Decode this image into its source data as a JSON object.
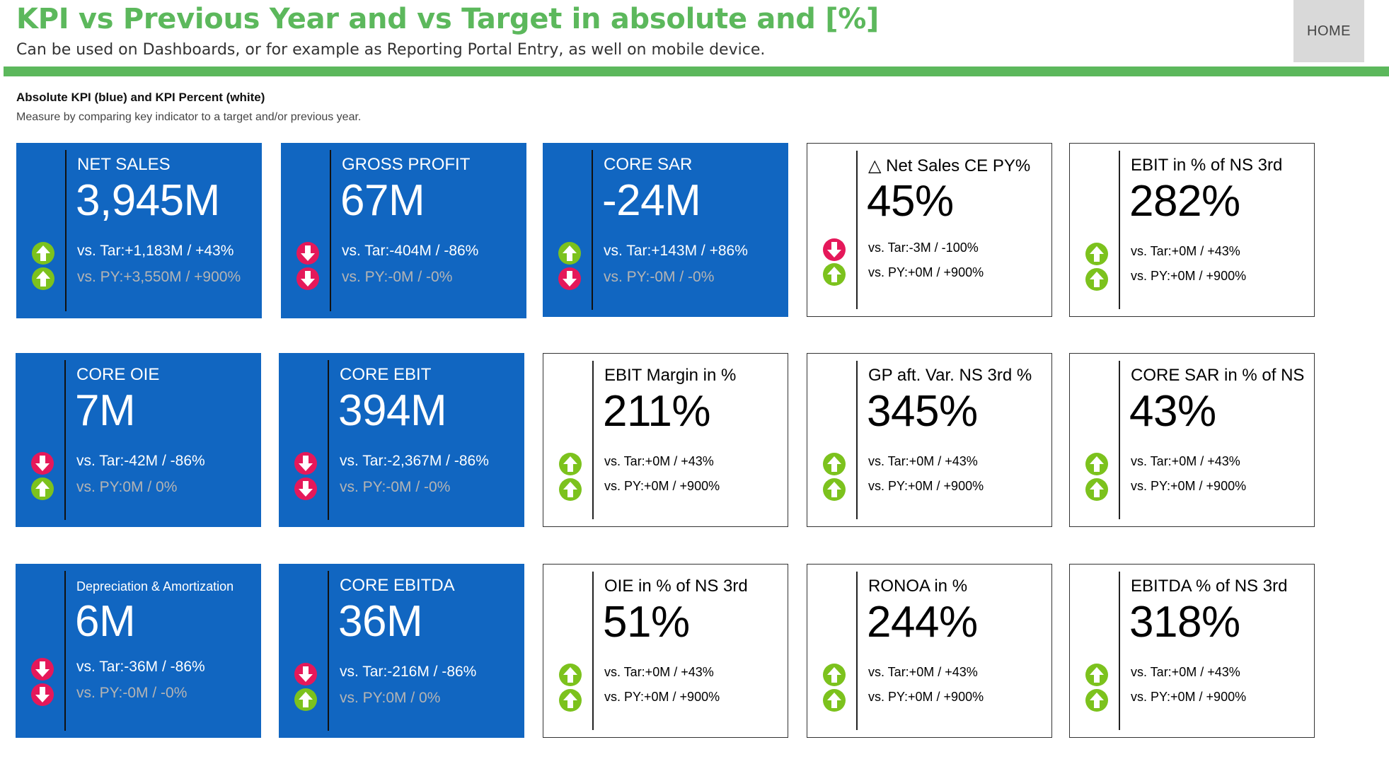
{
  "header": {
    "title": "KPI vs Previous Year and vs Target in absolute and [%]",
    "subtitle": "Can be used on Dashboards, or for example as Reporting Portal Entry, as well on mobile device.",
    "home_label": "HOME"
  },
  "section": {
    "heading": "Absolute KPI (blue) and KPI Percent (white)",
    "description": "Measure by comparing key indicator to a target and/or previous year."
  },
  "colors": {
    "accent_green": "#5cb85c",
    "tile_blue": "#1166c1",
    "arrow_up": "#7cc21d",
    "arrow_down": "#e5185a"
  },
  "tiles": [
    {
      "name": "NET SALES",
      "value": "3,945M",
      "vs_target": "vs. Tar:+1,183M / +43%",
      "vs_py": "vs. PY:+3,550M / +900%",
      "target_icon": "arrow-up-icon",
      "py_icon": "arrow-up-icon"
    },
    {
      "name": "GROSS PROFIT",
      "value": "67M",
      "vs_target": "vs. Tar:-404M / -86%",
      "vs_py": "vs. PY:-0M / -0%",
      "target_icon": "arrow-down-icon",
      "py_icon": "arrow-down-icon"
    },
    {
      "name": "CORE SAR",
      "value": "-24M",
      "vs_target": "vs. Tar:+143M / +86%",
      "vs_py": "vs. PY:-0M / -0%",
      "target_icon": "arrow-up-icon",
      "py_icon": "arrow-down-icon"
    },
    {
      "name": "△ Net Sales CE PY%",
      "value": "45%",
      "vs_target": "vs. Tar:-3M / -100%",
      "vs_py": "vs. PY:+0M / +900%",
      "target_icon": "arrow-down-icon",
      "py_icon": "arrow-up-icon"
    },
    {
      "name": "EBIT in % of NS 3rd",
      "value": "282%",
      "vs_target": "vs. Tar:+0M / +43%",
      "vs_py": "vs. PY:+0M / +900%",
      "target_icon": "arrow-up-icon",
      "py_icon": "arrow-up-icon"
    },
    {
      "name": "CORE OIE",
      "value": "7M",
      "vs_target": "vs. Tar:-42M / -86%",
      "vs_py": "vs. PY:0M / 0%",
      "target_icon": "arrow-down-icon",
      "py_icon": "arrow-up-icon"
    },
    {
      "name": "CORE EBIT",
      "value": "394M",
      "vs_target": "vs. Tar:-2,367M / -86%",
      "vs_py": "vs. PY:-0M / -0%",
      "target_icon": "arrow-down-icon",
      "py_icon": "arrow-down-icon"
    },
    {
      "name": "EBIT Margin in %",
      "value": "211%",
      "vs_target": "vs. Tar:+0M / +43%",
      "vs_py": "vs. PY:+0M / +900%",
      "target_icon": "arrow-up-icon",
      "py_icon": "arrow-up-icon"
    },
    {
      "name": "GP aft. Var. NS 3rd %",
      "value": "345%",
      "vs_target": "vs. Tar:+0M / +43%",
      "vs_py": "vs. PY:+0M / +900%",
      "target_icon": "arrow-up-icon",
      "py_icon": "arrow-up-icon"
    },
    {
      "name": "CORE SAR in % of NS",
      "value": "43%",
      "vs_target": "vs. Tar:+0M / +43%",
      "vs_py": "vs. PY:+0M / +900%",
      "target_icon": "arrow-up-icon",
      "py_icon": "arrow-up-icon"
    },
    {
      "name": "Depreciation & Amortization",
      "value": "6M",
      "vs_target": "vs. Tar:-36M / -86%",
      "vs_py": "vs. PY:-0M / -0%",
      "target_icon": "arrow-down-icon",
      "py_icon": "arrow-down-icon"
    },
    {
      "name": "CORE EBITDA",
      "value": "36M",
      "vs_target": "vs. Tar:-216M / -86%",
      "vs_py": "vs. PY:0M / 0%",
      "target_icon": "arrow-down-icon",
      "py_icon": "arrow-up-icon"
    },
    {
      "name": "OIE in % of NS 3rd",
      "value": "51%",
      "vs_target": "vs. Tar:+0M / +43%",
      "vs_py": "vs. PY:+0M / +900%",
      "target_icon": "arrow-up-icon",
      "py_icon": "arrow-up-icon"
    },
    {
      "name": "RONOA in %",
      "value": "244%",
      "vs_target": "vs. Tar:+0M / +43%",
      "vs_py": "vs. PY:+0M / +900%",
      "target_icon": "arrow-up-icon",
      "py_icon": "arrow-up-icon"
    },
    {
      "name": "EBITDA % of NS 3rd",
      "value": "318%",
      "vs_target": "vs. Tar:+0M / +43%",
      "vs_py": "vs. PY:+0M / +900%",
      "target_icon": "arrow-up-icon",
      "py_icon": "arrow-up-icon"
    }
  ]
}
